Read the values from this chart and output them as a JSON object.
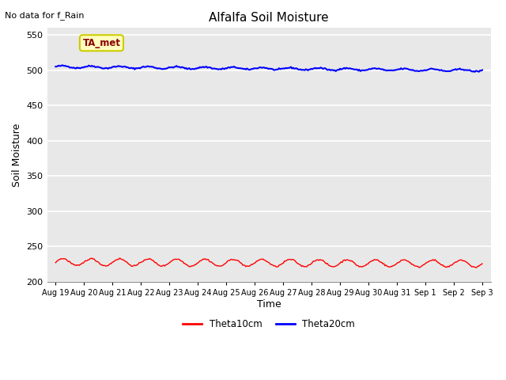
{
  "title": "Alfalfa Soil Moisture",
  "no_data_text": "No data for f_Rain",
  "ylabel": "Soil Moisture",
  "xlabel": "Time",
  "ylim": [
    200,
    560
  ],
  "yticks": [
    200,
    250,
    300,
    350,
    400,
    450,
    500,
    550
  ],
  "fig_bg_color": "#ffffff",
  "plot_bg_color": "#e8e8e8",
  "grid_color": "#ffffff",
  "line1_color": "#ff0000",
  "line2_color": "#0000ff",
  "line1_label": "Theta10cm",
  "line2_label": "Theta20cm",
  "annotation_text": "TA_met",
  "annotation_color": "#8b0000",
  "annotation_bg": "#ffffc0",
  "annotation_border": "#cccc00",
  "day_labels": [
    "Aug 19",
    "Aug 20",
    "Aug 21",
    "Aug 22",
    "Aug 23",
    "Aug 24",
    "Aug 25",
    "Aug 26",
    "Aug 27",
    "Aug 28",
    "Aug 29",
    "Aug 30",
    "Aug 31",
    "Sep 1",
    "Sep 2",
    "Sep 3"
  ],
  "num_points": 400
}
